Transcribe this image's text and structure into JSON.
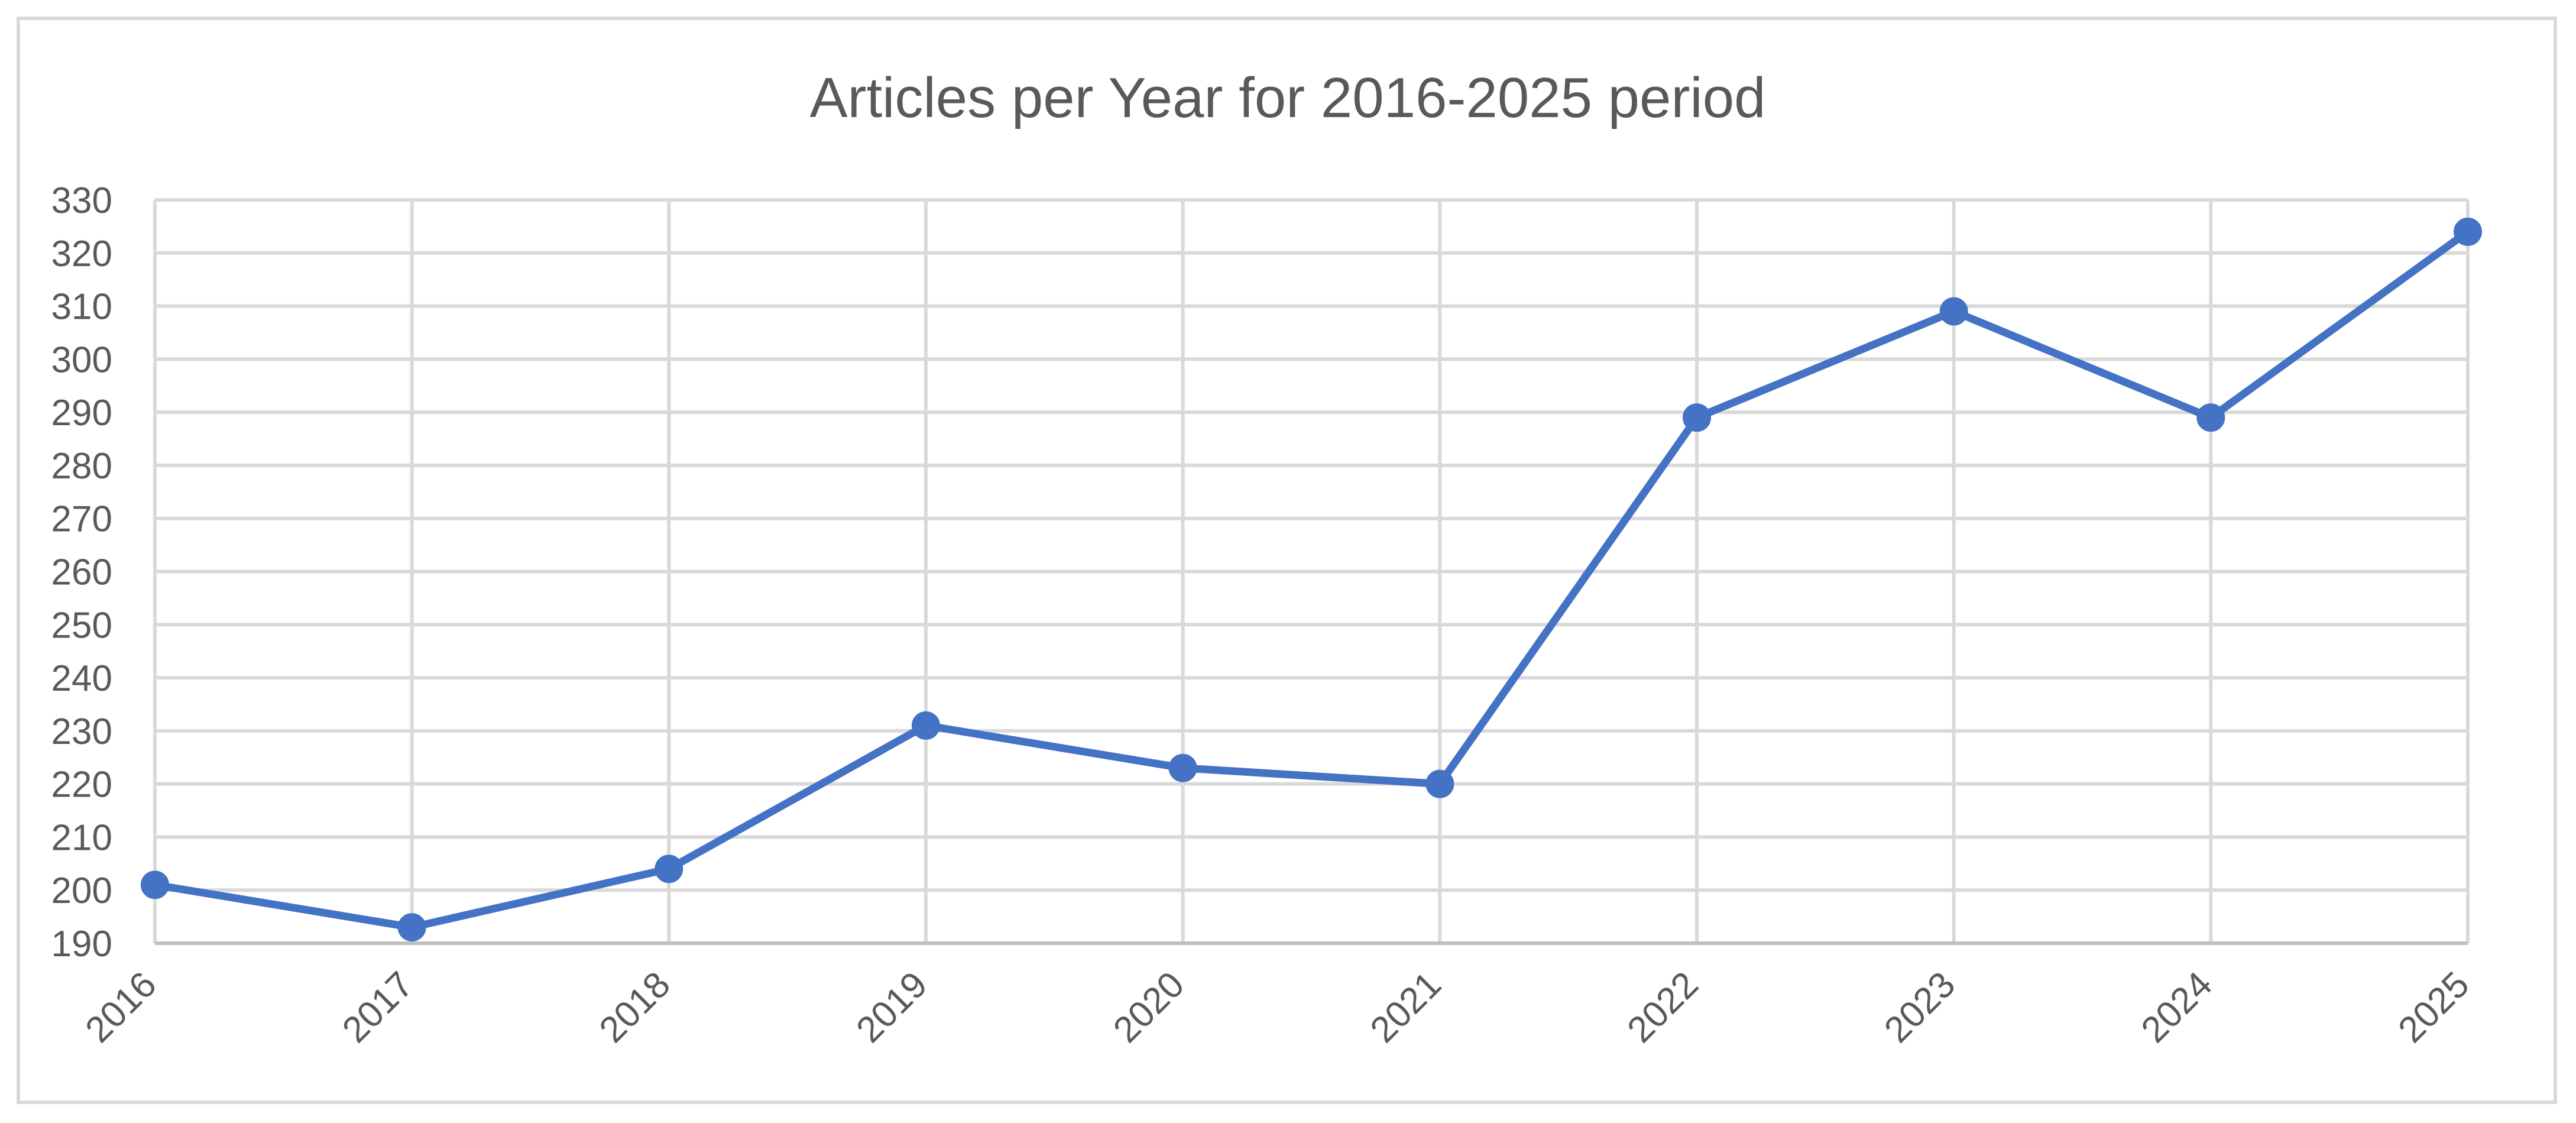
{
  "chart_data": {
    "type": "line",
    "title": "Articles per Year for 2016-2025 period",
    "xlabel": "",
    "ylabel": "",
    "categories": [
      "2016",
      "2017",
      "2018",
      "2019",
      "2020",
      "2021",
      "2022",
      "2023",
      "2024",
      "2025"
    ],
    "series": [
      {
        "values": [
          201,
          193,
          204,
          231,
          223,
          220,
          289,
          309,
          289,
          324
        ],
        "color": "#4472C4"
      }
    ],
    "ylim": [
      190,
      330
    ],
    "ytick_step": 10,
    "grid": true,
    "x_tick_rotation": "-45deg",
    "markers": "circle"
  }
}
